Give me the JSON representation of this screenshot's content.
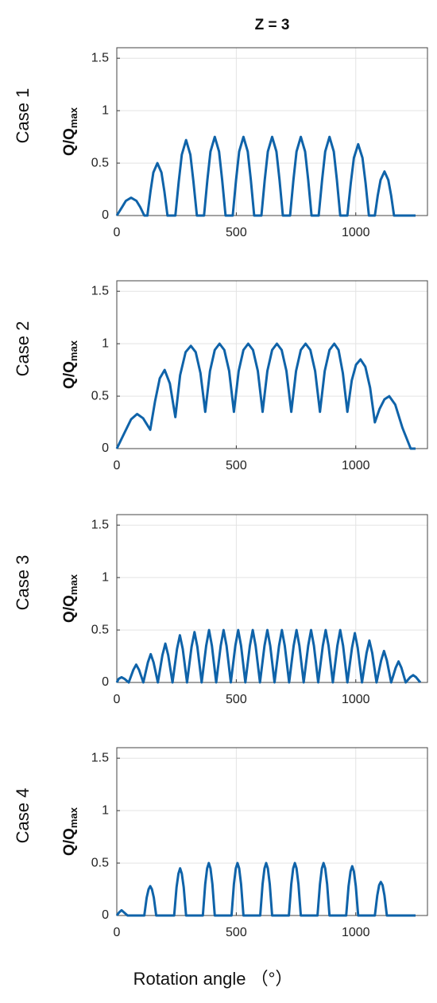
{
  "chart_data": [
    {
      "type": "line",
      "title": "Z = 3",
      "row_label": "Case 1",
      "ylabel": "Q/Q",
      "ylabel_sub": "max",
      "color": "#0f63a9",
      "grid": true,
      "xlim": [
        0,
        1300
      ],
      "xticks": [
        0,
        500,
        1000
      ],
      "ylim": [
        0,
        1.6
      ],
      "yticks": [
        0,
        0.5,
        1,
        1.5
      ],
      "x": [
        0,
        22,
        38,
        60,
        82,
        98,
        115,
        128,
        141,
        153,
        170,
        187,
        199,
        212,
        245,
        259,
        272,
        290,
        308,
        321,
        335,
        365,
        379,
        392,
        410,
        428,
        441,
        455,
        485,
        499,
        512,
        530,
        548,
        561,
        575,
        605,
        619,
        632,
        650,
        668,
        681,
        695,
        725,
        739,
        752,
        770,
        788,
        801,
        815,
        845,
        859,
        872,
        890,
        908,
        921,
        935,
        965,
        979,
        992,
        1010,
        1028,
        1041,
        1055,
        1080,
        1092,
        1104,
        1120,
        1136,
        1148,
        1160,
        1250
      ],
      "values": [
        0,
        0.08,
        0.14,
        0.17,
        0.14,
        0.08,
        0,
        0,
        0.23,
        0.41,
        0.5,
        0.41,
        0.23,
        0,
        0,
        0.32,
        0.58,
        0.72,
        0.58,
        0.32,
        0,
        0,
        0.34,
        0.61,
        0.75,
        0.61,
        0.34,
        0,
        0,
        0.34,
        0.61,
        0.75,
        0.61,
        0.34,
        0,
        0,
        0.34,
        0.61,
        0.75,
        0.61,
        0.34,
        0,
        0,
        0.34,
        0.61,
        0.75,
        0.61,
        0.34,
        0,
        0,
        0.34,
        0.61,
        0.75,
        0.61,
        0.34,
        0,
        0,
        0.31,
        0.55,
        0.68,
        0.55,
        0.31,
        0,
        0,
        0.19,
        0.34,
        0.42,
        0.34,
        0.19,
        0,
        0
      ]
    },
    {
      "type": "line",
      "row_label": "Case 2",
      "ylabel": "Q/Q",
      "ylabel_sub": "max",
      "color": "#0f63a9",
      "grid": true,
      "xlim": [
        0,
        1300
      ],
      "xticks": [
        0,
        500,
        1000
      ],
      "ylim": [
        0,
        1.6
      ],
      "yticks": [
        0,
        0.5,
        1,
        1.5
      ],
      "x": [
        0,
        30,
        60,
        85,
        110,
        140,
        160,
        180,
        200,
        222,
        245,
        265,
        288,
        310,
        330,
        350,
        370,
        390,
        410,
        430,
        450,
        470,
        490,
        510,
        530,
        550,
        570,
        590,
        610,
        630,
        650,
        670,
        690,
        710,
        730,
        750,
        770,
        790,
        810,
        830,
        850,
        870,
        890,
        910,
        928,
        946,
        965,
        983,
        1001,
        1020,
        1040,
        1060,
        1080,
        1100,
        1120,
        1140,
        1165,
        1195,
        1230,
        1250
      ],
      "values": [
        0,
        0.14,
        0.28,
        0.33,
        0.29,
        0.18,
        0.45,
        0.67,
        0.75,
        0.62,
        0.3,
        0.7,
        0.92,
        0.98,
        0.92,
        0.72,
        0.35,
        0.74,
        0.94,
        1.0,
        0.94,
        0.74,
        0.35,
        0.74,
        0.94,
        1.0,
        0.94,
        0.74,
        0.35,
        0.74,
        0.94,
        1.0,
        0.94,
        0.74,
        0.35,
        0.74,
        0.94,
        1.0,
        0.94,
        0.74,
        0.35,
        0.74,
        0.94,
        1.0,
        0.94,
        0.72,
        0.35,
        0.65,
        0.8,
        0.85,
        0.78,
        0.58,
        0.25,
        0.38,
        0.47,
        0.5,
        0.42,
        0.2,
        0,
        0
      ]
    },
    {
      "type": "line",
      "row_label": "Case 3",
      "ylabel": "Q/Q",
      "ylabel_sub": "max",
      "color": "#0f63a9",
      "grid": true,
      "xlim": [
        0,
        1300
      ],
      "xticks": [
        0,
        500,
        1000
      ],
      "ylim": [
        0,
        1.6
      ],
      "yticks": [
        0,
        0.5,
        1,
        1.5
      ],
      "x": [
        0,
        8,
        20,
        32,
        50,
        69,
        81,
        93,
        111,
        130,
        142,
        154,
        172,
        191,
        203,
        215,
        233,
        252,
        264,
        276,
        294,
        313,
        325,
        337,
        355,
        374,
        386,
        398,
        416,
        435,
        447,
        459,
        477,
        496,
        508,
        520,
        538,
        557,
        569,
        581,
        599,
        618,
        630,
        642,
        660,
        679,
        691,
        703,
        721,
        740,
        752,
        764,
        782,
        801,
        813,
        825,
        843,
        862,
        874,
        886,
        904,
        923,
        935,
        947,
        965,
        984,
        996,
        1008,
        1026,
        1045,
        1057,
        1069,
        1087,
        1106,
        1118,
        1130,
        1148,
        1167,
        1179,
        1191,
        1209,
        1228,
        1240,
        1252,
        1270
      ],
      "values": [
        0,
        0.035,
        0.05,
        0.035,
        0,
        0.12,
        0.17,
        0.12,
        0,
        0.19,
        0.27,
        0.19,
        0,
        0.26,
        0.37,
        0.26,
        0,
        0.32,
        0.45,
        0.32,
        0,
        0.34,
        0.48,
        0.34,
        0,
        0.35,
        0.5,
        0.35,
        0,
        0.35,
        0.5,
        0.35,
        0,
        0.35,
        0.5,
        0.35,
        0,
        0.35,
        0.5,
        0.35,
        0,
        0.35,
        0.5,
        0.35,
        0,
        0.35,
        0.5,
        0.35,
        0,
        0.35,
        0.5,
        0.35,
        0,
        0.35,
        0.5,
        0.35,
        0,
        0.35,
        0.5,
        0.35,
        0,
        0.35,
        0.5,
        0.35,
        0,
        0.33,
        0.47,
        0.33,
        0,
        0.28,
        0.4,
        0.28,
        0,
        0.21,
        0.3,
        0.21,
        0,
        0.14,
        0.2,
        0.14,
        0,
        0.05,
        0.07,
        0.05,
        0
      ]
    },
    {
      "type": "line",
      "row_label": "Case 4",
      "ylabel": "Q/Q",
      "ylabel_sub": "max",
      "xlabel": "Rotation angle （°）",
      "color": "#0f63a9",
      "grid": true,
      "xlim": [
        0,
        1300
      ],
      "xticks": [
        0,
        500,
        1000
      ],
      "ylim": [
        0,
        1.6
      ],
      "yticks": [
        0,
        0.5,
        1,
        1.5
      ],
      "x": [
        0,
        10,
        20,
        30,
        45,
        115,
        125,
        133,
        140,
        147,
        155,
        165,
        240,
        250,
        258,
        265,
        272,
        280,
        290,
        360,
        370,
        378,
        385,
        392,
        400,
        410,
        480,
        490,
        498,
        505,
        512,
        520,
        530,
        600,
        610,
        618,
        625,
        632,
        640,
        650,
        720,
        730,
        738,
        745,
        752,
        760,
        770,
        840,
        850,
        858,
        865,
        872,
        880,
        890,
        960,
        970,
        978,
        985,
        992,
        1000,
        1010,
        1080,
        1090,
        1098,
        1105,
        1112,
        1120,
        1130,
        1250
      ],
      "values": [
        0,
        0.03,
        0.05,
        0.03,
        0,
        0,
        0.17,
        0.25,
        0.28,
        0.25,
        0.17,
        0,
        0,
        0.27,
        0.4,
        0.45,
        0.4,
        0.27,
        0,
        0,
        0.3,
        0.45,
        0.5,
        0.45,
        0.3,
        0,
        0,
        0.3,
        0.45,
        0.5,
        0.45,
        0.3,
        0,
        0,
        0.3,
        0.45,
        0.5,
        0.45,
        0.3,
        0,
        0,
        0.3,
        0.45,
        0.5,
        0.45,
        0.3,
        0,
        0,
        0.3,
        0.45,
        0.5,
        0.45,
        0.3,
        0,
        0,
        0.28,
        0.42,
        0.47,
        0.42,
        0.28,
        0,
        0,
        0.19,
        0.29,
        0.32,
        0.29,
        0.19,
        0,
        0
      ]
    }
  ]
}
